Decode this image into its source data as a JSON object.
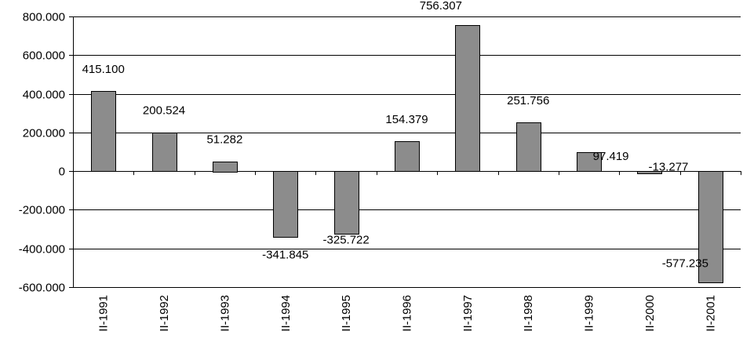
{
  "chart_data": {
    "type": "bar",
    "categories": [
      "II-1991",
      "II-1992",
      "II-1993",
      "II-1994",
      "II-1995",
      "II-1996",
      "II-1997",
      "II-1998",
      "II-1999",
      "II-2000",
      "II-2001"
    ],
    "values": [
      415100,
      200524,
      51282,
      -341845,
      -325722,
      154379,
      756307,
      251756,
      97419,
      -13277,
      -577235
    ],
    "data_labels": [
      "415.100",
      "200.524",
      "51.282",
      "-341.845",
      "-325.722",
      "154.379",
      "756.307",
      "251.756",
      "97.419",
      "-13.277",
      "-577.235"
    ],
    "ylim": [
      -600000,
      800000
    ],
    "y_ticks": [
      800000,
      600000,
      400000,
      200000,
      0,
      -200000,
      -400000,
      -600000
    ],
    "y_tick_labels": [
      "800.000",
      "600.000",
      "400.000",
      "200.000",
      "0",
      "-200.000",
      "-400.000",
      "-600.000"
    ],
    "grid": true,
    "legend": false,
    "colors": {
      "bar": "#8c8c8c",
      "edge": "#000000"
    }
  }
}
